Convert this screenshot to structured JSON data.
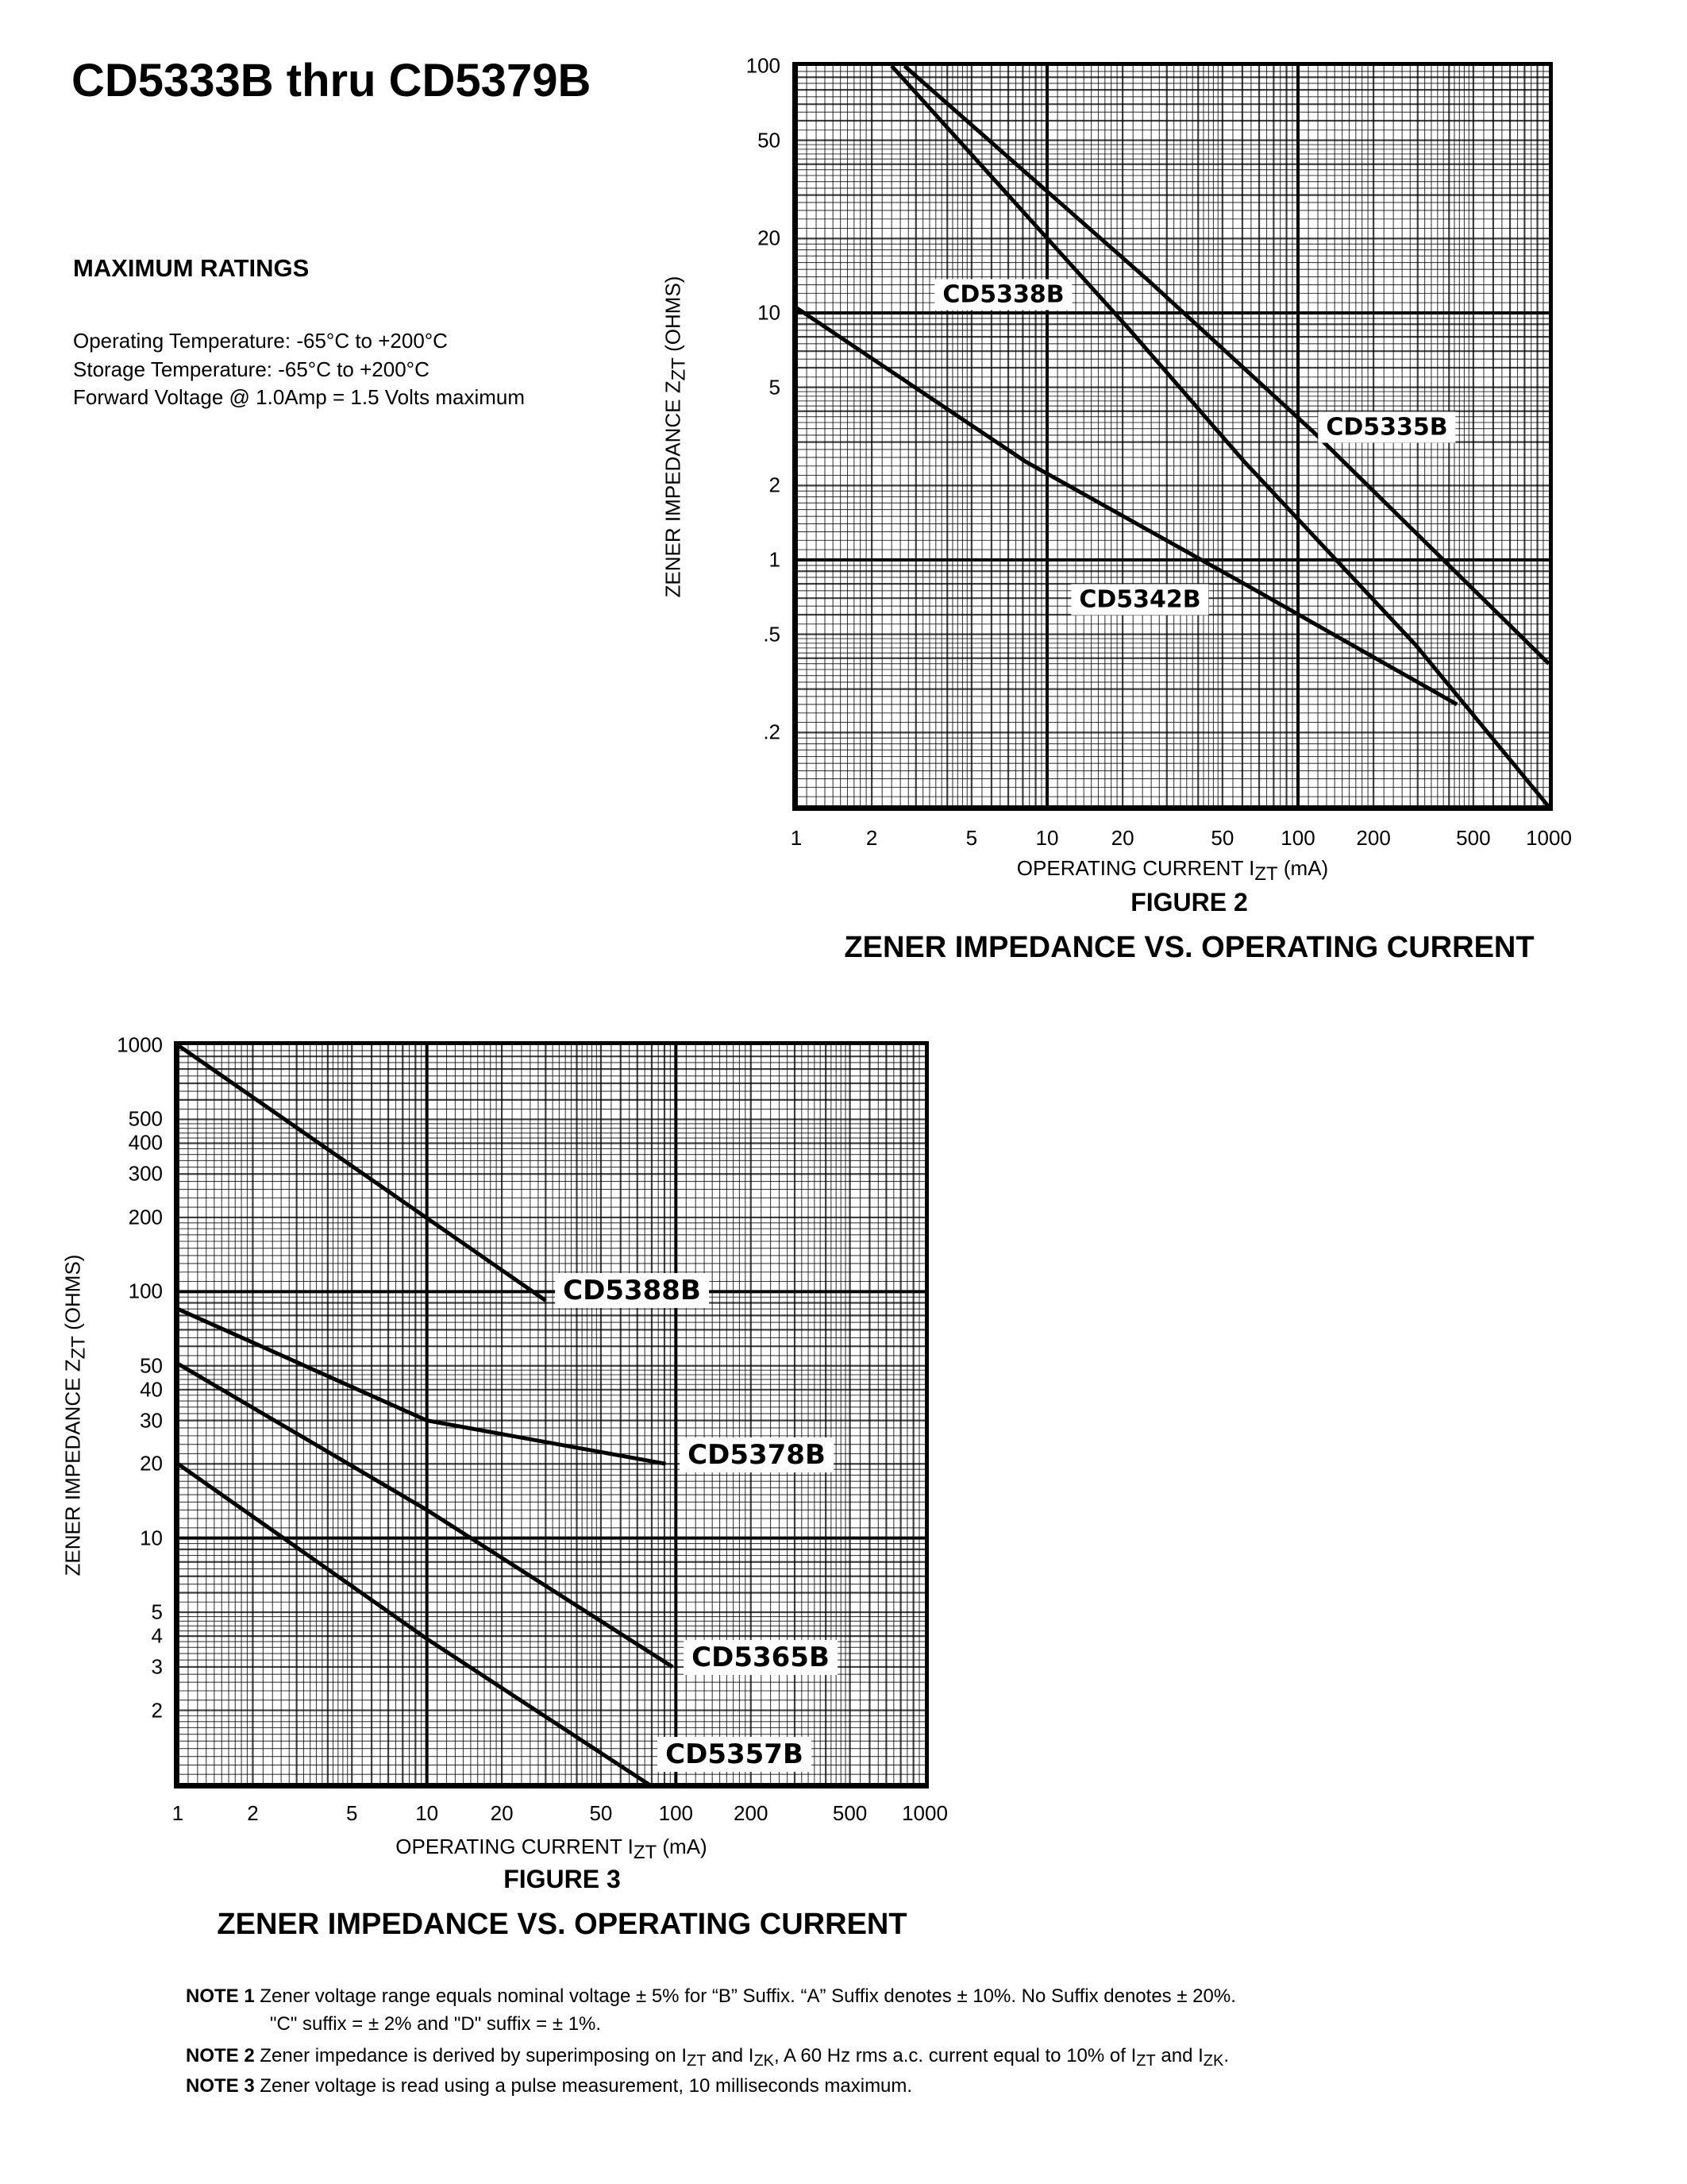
{
  "document": {
    "title": "CD5333B thru CD5379B",
    "ratings_heading": "MAXIMUM RATINGS",
    "ratings": [
      "Operating Temperature: -65°C to +200°C",
      "Storage Temperature: -65°C to +200°C",
      "Forward Voltage @ 1.0Amp = 1.5 Volts maximum"
    ]
  },
  "chart_data": [
    {
      "type": "line",
      "figure": "FIGURE 2",
      "title": "ZENER IMPEDANCE VS. OPERATING CURRENT",
      "xlabel": {
        "main": "OPERATING CURRENT I",
        "sub": "ZT",
        "unit": " (mA)"
      },
      "ylabel": {
        "main": "ZENER IMPEDANCE Z",
        "sub": "ZT",
        "unit": " (OHMS)"
      },
      "xscale": "log",
      "yscale": "log",
      "xlim": [
        1,
        1000
      ],
      "ylim": [
        0.1,
        100
      ],
      "grid": true,
      "xticks": [
        "1",
        "2",
        "5",
        "10",
        "20",
        "50",
        "100",
        "200",
        "500",
        "1000"
      ],
      "yticks": [
        "100",
        "50",
        "20",
        "10",
        "5",
        "2",
        "1",
        ".5",
        ".2"
      ],
      "series": [
        {
          "name": "CD5335B",
          "x": [
            2.7,
            25,
            115,
            1000
          ],
          "y": [
            100,
            13.7,
            3.3,
            0.38
          ]
        },
        {
          "name": "CD5338B",
          "x": [
            2.4,
            21,
            61,
            296,
            1000
          ],
          "y": [
            100,
            8.7,
            2.5,
            0.45,
            0.1
          ]
        },
        {
          "name": "CD5342B",
          "x": [
            1,
            8.2,
            61,
            430
          ],
          "y": [
            10.5,
            2.5,
            0.8,
            0.26
          ]
        }
      ]
    },
    {
      "type": "line",
      "figure": "FIGURE 3",
      "title": "ZENER IMPEDANCE VS. OPERATING CURRENT",
      "xlabel": {
        "main": "OPERATING CURRENT I",
        "sub": "ZT",
        "unit": " (mA)"
      },
      "ylabel": {
        "main": "ZENER IMPEDANCE Z",
        "sub": "ZT",
        "unit": " (OHMS)"
      },
      "xscale": "log",
      "yscale": "log",
      "xlim": [
        1,
        1000
      ],
      "ylim": [
        1,
        1000
      ],
      "grid": true,
      "xticks": [
        "1",
        "2",
        "5",
        "10",
        "20",
        "50",
        "100",
        "200",
        "500",
        "1000"
      ],
      "yticks": [
        "1000",
        "500",
        "400",
        "300",
        "200",
        "100",
        "50",
        "40",
        "30",
        "20",
        "10",
        "5",
        "4",
        "3",
        "2"
      ],
      "series": [
        {
          "name": "CD5388B",
          "x": [
            1,
            30
          ],
          "y": [
            1000,
            92
          ]
        },
        {
          "name": "CD5378B",
          "x": [
            1,
            10,
            91
          ],
          "y": [
            85,
            30,
            20
          ]
        },
        {
          "name": "CD5365B",
          "x": [
            1,
            10,
            97
          ],
          "y": [
            51,
            13,
            3
          ]
        },
        {
          "name": "CD5357B",
          "x": [
            1,
            10,
            78
          ],
          "y": [
            20,
            3.9,
            1
          ]
        }
      ]
    }
  ],
  "notes": [
    {
      "label": "NOTE 1",
      "lines": [
        [
          {
            "t": "Zener voltage range equals nominal voltage ± 5% for “B” Suffix. “A” Suffix denotes ± 10%. No Suffix denotes ± 20%."
          }
        ],
        [
          {
            "t": "\"C\" suffix = ± 2% and \"D\" suffix = ± 1%."
          }
        ]
      ]
    },
    {
      "label": "NOTE 2",
      "lines": [
        [
          {
            "t": "Zener impedance is derived by superimposing on I"
          },
          {
            "sub": "ZT"
          },
          {
            "t": " and I"
          },
          {
            "sub": "ZK"
          },
          {
            "t": ", A 60 Hz rms a.c. current equal to 10% of I"
          },
          {
            "sub": "ZT"
          },
          {
            "t": " and I"
          },
          {
            "sub": "ZK"
          },
          {
            "t": "."
          }
        ]
      ]
    },
    {
      "label": "NOTE 3",
      "lines": [
        [
          {
            "t": "Zener voltage is read using a pulse measurement, 10 milliseconds maximum."
          }
        ]
      ]
    }
  ]
}
